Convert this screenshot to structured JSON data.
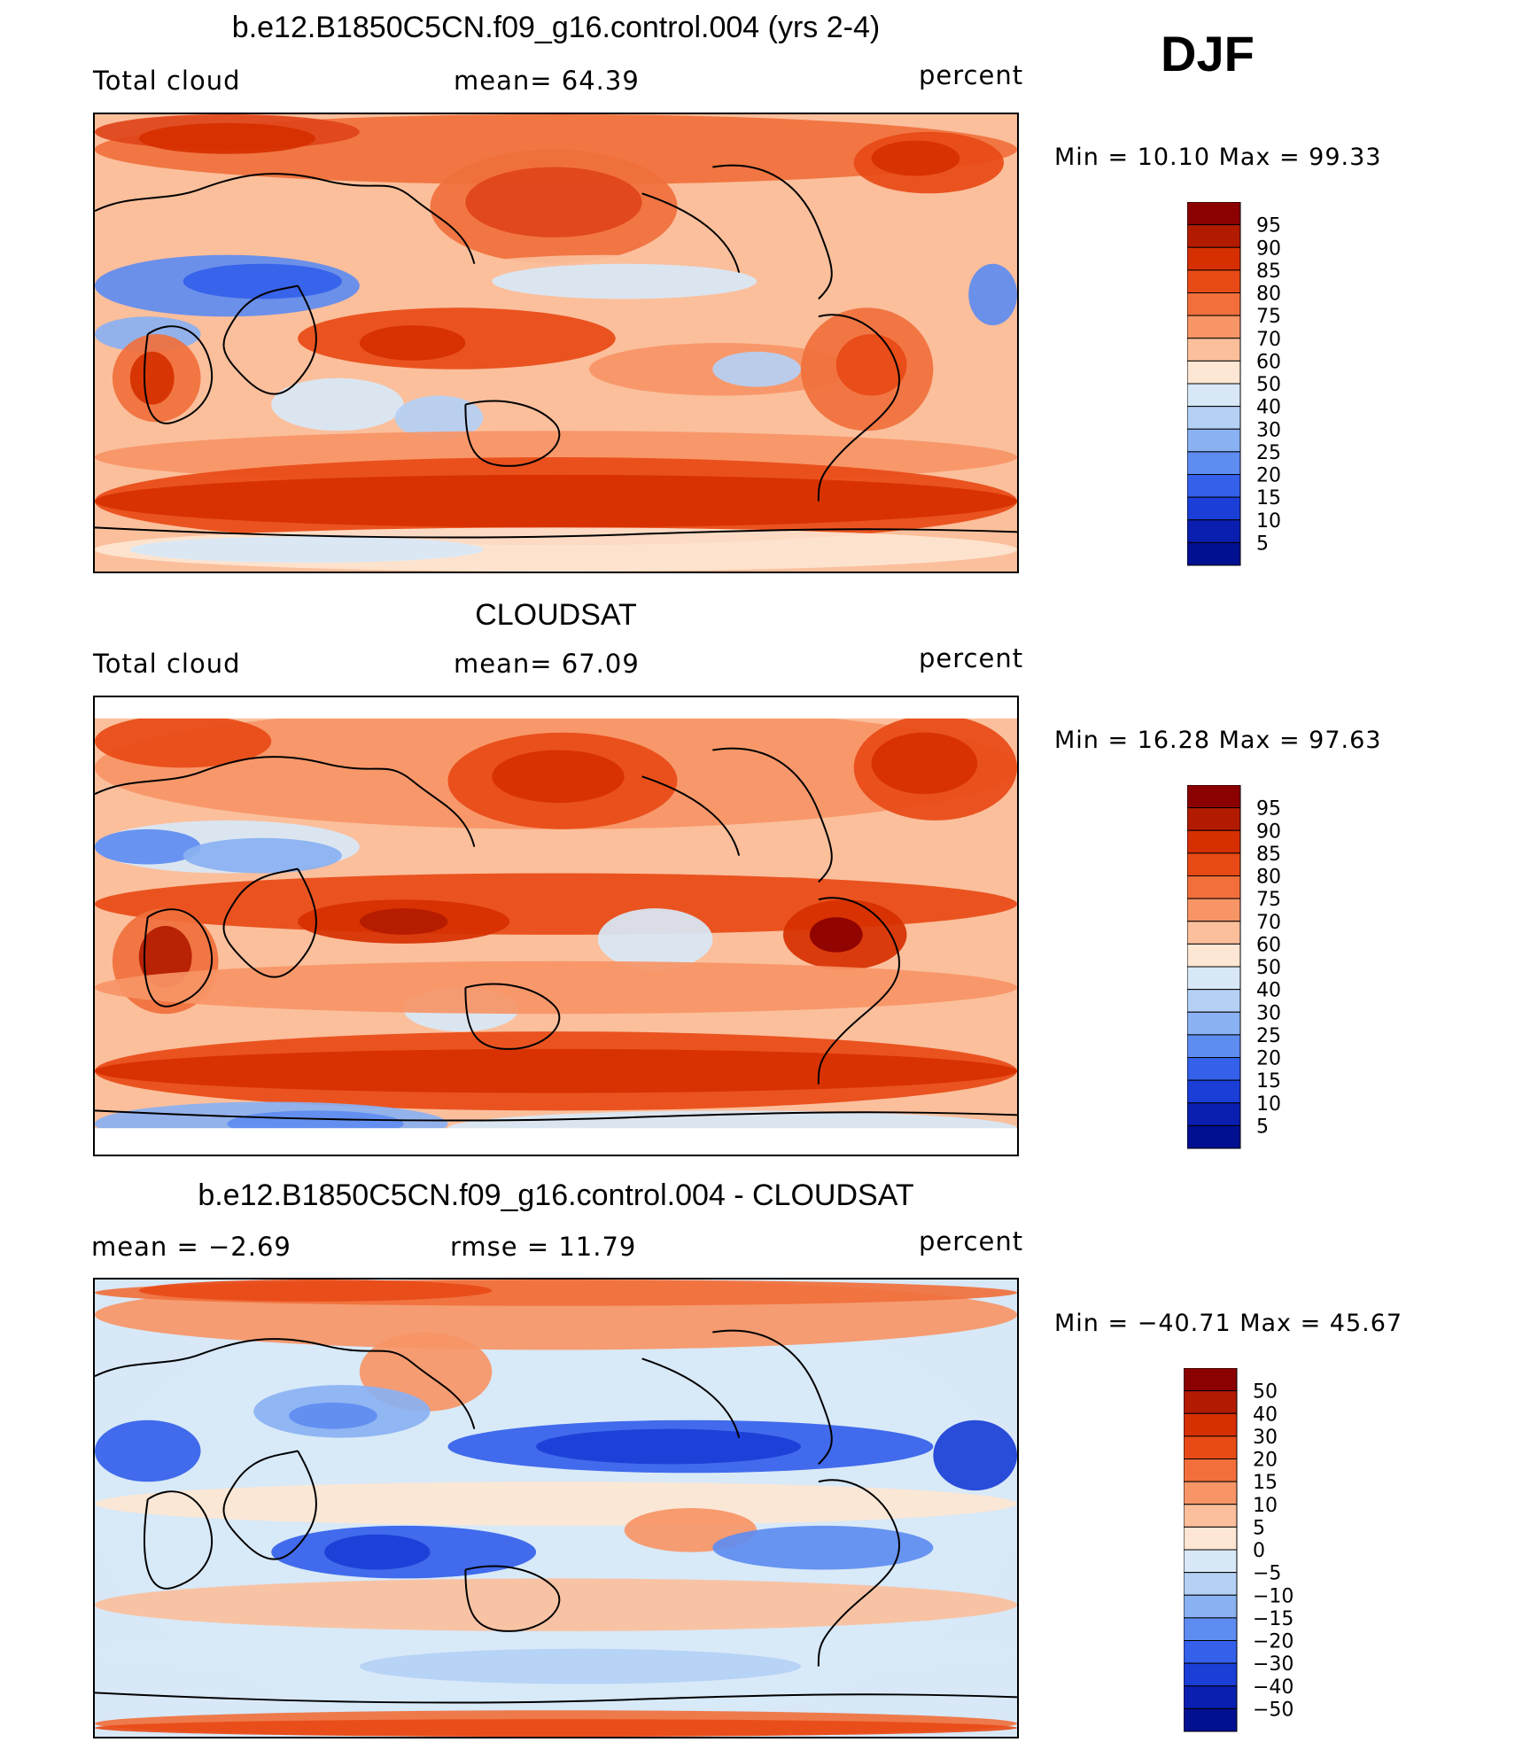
{
  "season": "DJF",
  "units_label": "percent",
  "chart_data": [
    {
      "type": "heatmap",
      "title": "b.e12.B1850C5CN.f09_g16.control.004 (yrs 2-4)",
      "left_label": "Total cloud",
      "center_label": "mean=   64.39",
      "right_label": "percent",
      "variable": "Total cloud",
      "mean": 64.39,
      "min": 10.1,
      "max": 99.33,
      "minmax_text": "Min =   10.10 Max =   99.33",
      "colorbar_levels": [
        "95",
        "90",
        "85",
        "80",
        "75",
        "70",
        "60",
        "50",
        "40",
        "30",
        "25",
        "20",
        "15",
        "10",
        "5"
      ],
      "colorbar_colors": [
        "#8b0000",
        "#b31b00",
        "#d63000",
        "#e84a16",
        "#f26f3b",
        "#f79566",
        "#fbbf9c",
        "#fde6d3",
        "#d8e8f7",
        "#b4d0f5",
        "#8ab1f2",
        "#5e8cf0",
        "#3460ea",
        "#1a3ed6",
        "#0a1eb0",
        "#001090"
      ]
    },
    {
      "type": "heatmap",
      "title": "CLOUDSAT",
      "left_label": "Total cloud",
      "center_label": "mean=   67.09",
      "right_label": "percent",
      "variable": "Total cloud",
      "mean": 67.09,
      "min": 16.28,
      "max": 97.63,
      "minmax_text": "Min =   16.28 Max =   97.63",
      "colorbar_levels": [
        "95",
        "90",
        "85",
        "80",
        "75",
        "70",
        "60",
        "50",
        "40",
        "30",
        "25",
        "20",
        "15",
        "10",
        "5"
      ],
      "colorbar_colors": [
        "#8b0000",
        "#b31b00",
        "#d63000",
        "#e84a16",
        "#f26f3b",
        "#f79566",
        "#fbbf9c",
        "#fde6d3",
        "#d8e8f7",
        "#b4d0f5",
        "#8ab1f2",
        "#5e8cf0",
        "#3460ea",
        "#1a3ed6",
        "#0a1eb0",
        "#001090"
      ]
    },
    {
      "type": "heatmap",
      "title": "b.e12.B1850C5CN.f09_g16.control.004 - CLOUDSAT",
      "left_label": "mean =   −2.69",
      "center_label": "rmse =   11.79",
      "right_label": "percent",
      "mean": -2.69,
      "rmse": 11.79,
      "min": -40.71,
      "max": 45.67,
      "minmax_text": "Min = −40.71 Max =   45.67",
      "colorbar_levels": [
        "50",
        "40",
        "30",
        "20",
        "15",
        "10",
        "5",
        "0",
        "−5",
        "−10",
        "−15",
        "−20",
        "−30",
        "−40",
        "−50"
      ],
      "colorbar_colors": [
        "#8b0000",
        "#b31b00",
        "#d63000",
        "#e84a16",
        "#f26f3b",
        "#f79566",
        "#fbbf9c",
        "#fde6d3",
        "#d8e8f7",
        "#b4d0f5",
        "#8ab1f2",
        "#5e8cf0",
        "#3460ea",
        "#1a3ed6",
        "#0a1eb0",
        "#001090"
      ]
    }
  ]
}
